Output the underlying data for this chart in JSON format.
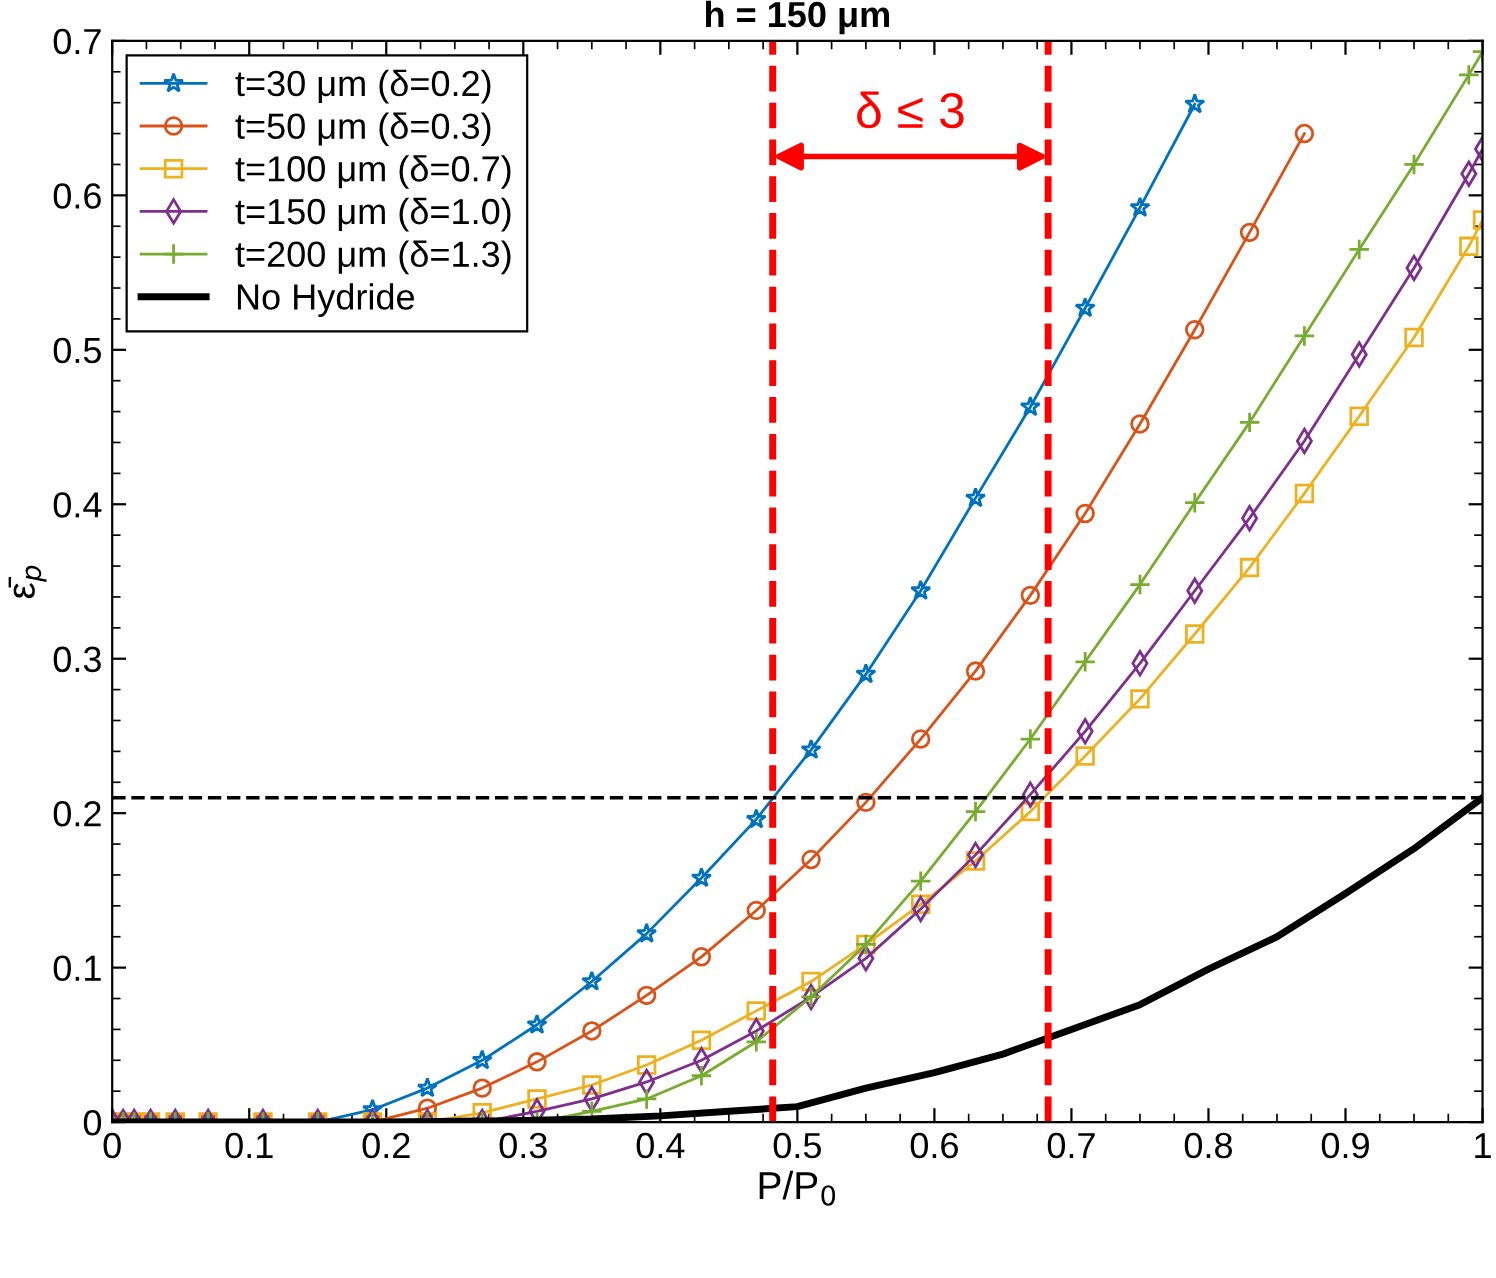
{
  "chart_data": {
    "type": "line",
    "title": "h = 150 μm",
    "xlabel": "P/P$_{0}$",
    "ylabel": "ε̄$_{p}$",
    "x": [
      0,
      0.008,
      0.016,
      0.028,
      0.046,
      0.07,
      0.11,
      0.15,
      0.19,
      0.23,
      0.27,
      0.31,
      0.35,
      0.39,
      0.43,
      0.47,
      0.51,
      0.55,
      0.59,
      0.63,
      0.67,
      0.71,
      0.75,
      0.79,
      0.83,
      0.87,
      0.91,
      0.95,
      0.99,
      1.0
    ],
    "series": [
      {
        "name": "t=30 μm (δ=0.2)",
        "color": "#0072bd",
        "marker": "star",
        "values": [
          0,
          0,
          0,
          0,
          0,
          0,
          0,
          0,
          0.008,
          0.022,
          0.04,
          0.063,
          0.091,
          0.122,
          0.158,
          0.196,
          0.241,
          0.29,
          0.344,
          0.404,
          0.463,
          0.527,
          0.592,
          0.659,
          null,
          null,
          null,
          null,
          null,
          null
        ]
      },
      {
        "name": "t=50 μm (δ=0.3)",
        "color": "#d95319",
        "marker": "circle",
        "values": [
          0,
          0,
          0,
          0,
          0,
          0,
          0,
          0,
          0,
          0.009,
          0.022,
          0.039,
          0.059,
          0.082,
          0.107,
          0.137,
          0.17,
          0.207,
          0.248,
          0.292,
          0.341,
          0.394,
          0.452,
          0.513,
          0.576,
          0.64,
          null,
          null,
          null,
          null
        ]
      },
      {
        "name": "t=100 μm (δ=0.7)",
        "color": "#edb120",
        "marker": "square",
        "values": [
          0,
          0,
          0,
          0,
          0,
          0,
          0,
          0,
          0,
          0,
          0.006,
          0.015,
          0.024,
          0.037,
          0.053,
          0.072,
          0.091,
          0.115,
          0.141,
          0.169,
          0.201,
          0.237,
          0.274,
          0.316,
          0.359,
          0.407,
          0.457,
          0.508,
          0.567,
          0.584
        ]
      },
      {
        "name": "t=150 μm (δ=1.0)",
        "color": "#7e2f8e",
        "marker": "diamond",
        "values": [
          0,
          0,
          0,
          0,
          0,
          0,
          0,
          0,
          0,
          0,
          0,
          0.007,
          0.015,
          0.026,
          0.04,
          0.059,
          0.081,
          0.106,
          0.138,
          0.173,
          0.212,
          0.253,
          0.297,
          0.344,
          0.391,
          0.441,
          0.497,
          0.553,
          0.614,
          0.63
        ]
      },
      {
        "name": "t=200 μm (δ=1.3)",
        "color": "#77ac30",
        "marker": "cross",
        "values": [
          0,
          0,
          0,
          0,
          0,
          0,
          0,
          0,
          0,
          0,
          0,
          0,
          0.007,
          0.015,
          0.03,
          0.052,
          0.081,
          0.115,
          0.156,
          0.201,
          0.248,
          0.298,
          0.348,
          0.401,
          0.453,
          0.509,
          0.565,
          0.62,
          0.678,
          0.693
        ]
      },
      {
        "name": "No Hydride",
        "color": "#000000",
        "marker": "none",
        "x": [
          0,
          0.1,
          0.2,
          0.3,
          0.35,
          0.4,
          0.45,
          0.5,
          0.55,
          0.6,
          0.65,
          0.7,
          0.75,
          0.8,
          0.85,
          0.9,
          0.95,
          1.0
        ],
        "values": [
          0,
          0,
          0,
          0.001,
          0.002,
          0.004,
          0.007,
          0.01,
          0.022,
          0.032,
          0.044,
          0.06,
          0.076,
          0.099,
          0.12,
          0.148,
          0.177,
          0.21
        ]
      }
    ],
    "ref_lines": [
      {
        "axis": "y",
        "value": 0.21,
        "color": "#000000",
        "line_style": "dashed"
      },
      {
        "axis": "x",
        "value": 0.482,
        "color": "#ff0000",
        "line_style": "dashed"
      },
      {
        "axis": "x",
        "value": 0.683,
        "color": "#ff0000",
        "line_style": "dashed"
      }
    ],
    "annotations": [
      "δ ≤ 3"
    ],
    "xlim": [
      0,
      1
    ],
    "ylim": [
      0,
      0.7
    ],
    "xticks": [
      0,
      0.1,
      0.2,
      0.3,
      0.4,
      0.5,
      0.6,
      0.7,
      0.8,
      0.9,
      1
    ],
    "yticks": [
      0,
      0.1,
      0.2,
      0.3,
      0.4,
      0.5,
      0.6,
      0.7
    ],
    "grid": false,
    "legend": "top left",
    "line_style": "solid"
  }
}
